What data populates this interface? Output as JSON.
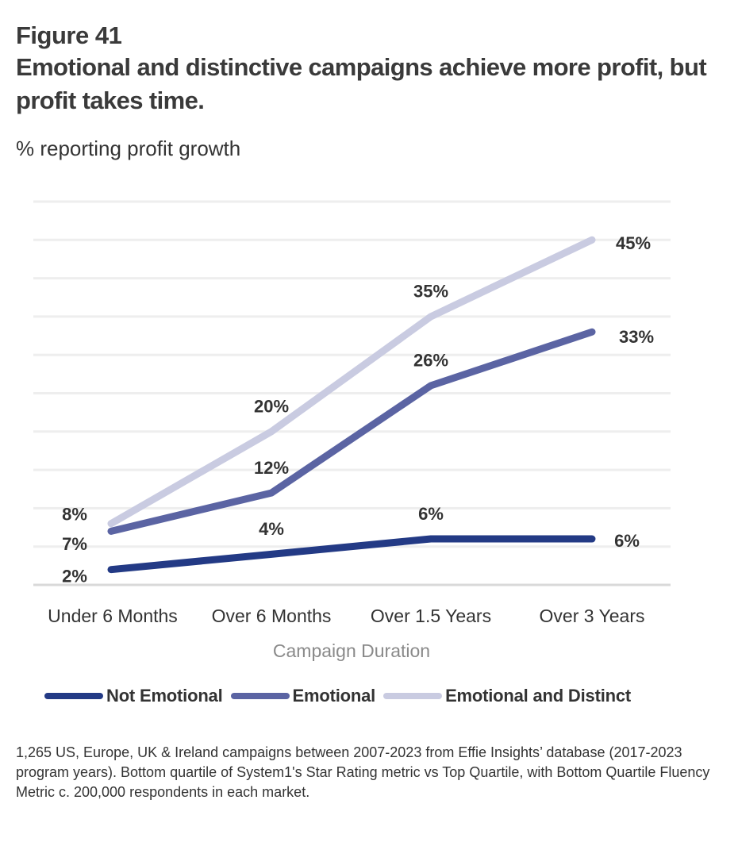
{
  "figure_label": "Figure 41",
  "title": "Emotional and distinctive campaigns achieve more profit, but profit takes time.",
  "subtitle": "% reporting profit growth",
  "footnote": "1,265 US, Europe, UK & Ireland campaigns between 2007-2023 from Effie Insights’ database  (2017-2023 program years). Bottom quartile of System1's Star Rating metric vs Top Quartile, with Bottom Quartile Fluency Metric c. 200,000 respondents in each market.",
  "chart_data": {
    "type": "line",
    "title": "Emotional and distinctive campaigns achieve more profit, but profit takes time.",
    "subtitle": "% reporting profit growth",
    "xlabel": "Campaign Duration",
    "ylabel": "% reporting profit growth",
    "categories": [
      "Under 6 Months",
      "Over 6 Months",
      "Over 1.5 Years",
      "Over 3 Years"
    ],
    "ylim": [
      0,
      50
    ],
    "y_grid_step": 5,
    "grid": true,
    "y_tick_labels_shown": false,
    "legend_position": "bottom",
    "series": [
      {
        "name": "Not Emotional",
        "color": "#233a85",
        "values": [
          2,
          4,
          6,
          6
        ],
        "labels": [
          "2%",
          "4%",
          "6%",
          "6%"
        ]
      },
      {
        "name": "Emotional",
        "color": "#5b64a3",
        "values": [
          7,
          12,
          26,
          33
        ],
        "labels": [
          "7%",
          "12%",
          "26%",
          "33%"
        ]
      },
      {
        "name": "Emotional and Distinct",
        "color": "#c9cbe1",
        "values": [
          8,
          20,
          35,
          45
        ],
        "labels": [
          "8%",
          "20%",
          "35%",
          "45%"
        ]
      }
    ]
  }
}
